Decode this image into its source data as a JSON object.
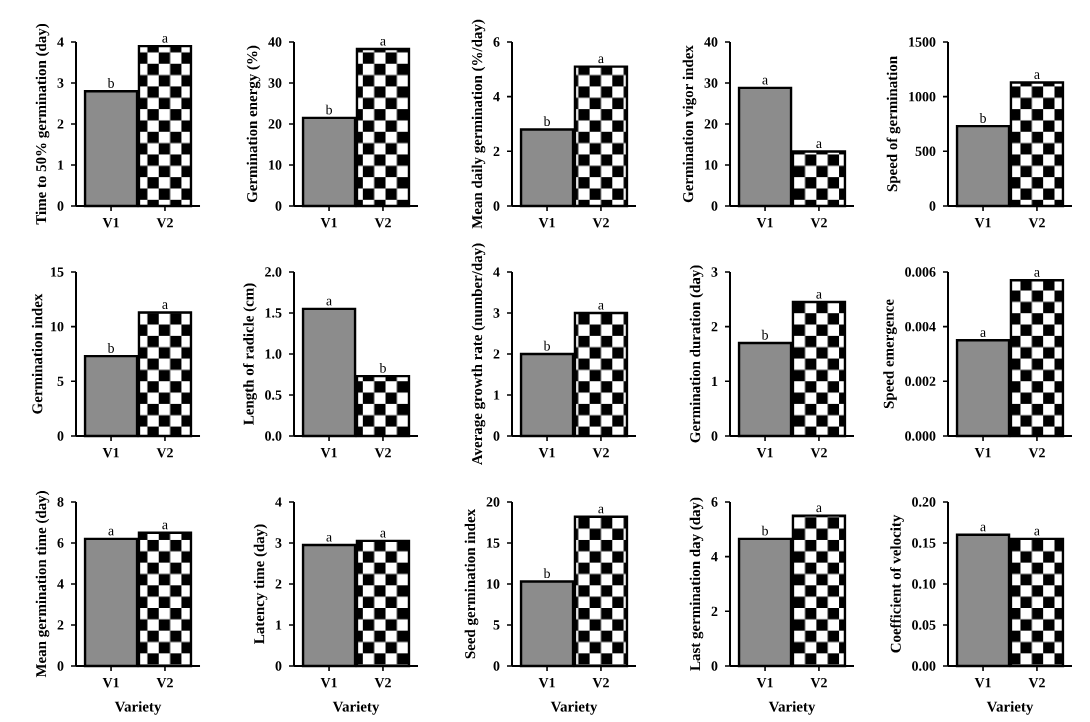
{
  "chart_data": [
    {
      "type": "bar",
      "categories": [
        "V1",
        "V2"
      ],
      "values": [
        2.8,
        3.9
      ],
      "value_labels": [
        "b",
        "a"
      ],
      "colors": [
        "#8c8c8c",
        "#000000"
      ],
      "ylabel": "Time to 50% germination (day)",
      "ylim": [
        0,
        4
      ],
      "yticks": [
        0,
        1,
        2,
        3,
        4
      ]
    },
    {
      "type": "bar",
      "categories": [
        "V1",
        "V2"
      ],
      "values": [
        21.5,
        38.3
      ],
      "value_labels": [
        "b",
        "a"
      ],
      "colors": [
        "#8c8c8c",
        "#000000"
      ],
      "ylabel": "Germination energy (%)",
      "ylim": [
        0,
        40
      ],
      "yticks": [
        0,
        10,
        20,
        30,
        40
      ]
    },
    {
      "type": "bar",
      "categories": [
        "V1",
        "V2"
      ],
      "values": [
        2.8,
        5.1
      ],
      "value_labels": [
        "b",
        "a"
      ],
      "colors": [
        "#8c8c8c",
        "#000000"
      ],
      "ylabel": "Mean daily germination (%/day)",
      "ylim": [
        0,
        6
      ],
      "yticks": [
        0,
        2,
        4,
        6
      ]
    },
    {
      "type": "bar",
      "categories": [
        "V1",
        "V2"
      ],
      "values": [
        28.8,
        13.3
      ],
      "value_labels": [
        "a",
        "a"
      ],
      "colors": [
        "#8c8c8c",
        "#000000"
      ],
      "ylabel": "Germination vigor index",
      "ylim": [
        0,
        40
      ],
      "yticks": [
        0,
        10,
        20,
        30,
        40
      ]
    },
    {
      "type": "bar",
      "categories": [
        "V1",
        "V2"
      ],
      "values": [
        730,
        1130
      ],
      "value_labels": [
        "b",
        "a"
      ],
      "colors": [
        "#8c8c8c",
        "#000000"
      ],
      "ylabel": "Speed of germination",
      "ylim": [
        0,
        1500
      ],
      "yticks": [
        0,
        500,
        1000,
        1500
      ]
    },
    {
      "type": "bar",
      "categories": [
        "V1",
        "V2"
      ],
      "values": [
        7.3,
        11.3
      ],
      "value_labels": [
        "b",
        "a"
      ],
      "colors": [
        "#8c8c8c",
        "#000000"
      ],
      "ylabel": "Germination index",
      "ylim": [
        0,
        15
      ],
      "yticks": [
        0,
        5,
        10,
        15
      ]
    },
    {
      "type": "bar",
      "categories": [
        "V1",
        "V2"
      ],
      "values": [
        1.55,
        0.73
      ],
      "value_labels": [
        "a",
        "b"
      ],
      "colors": [
        "#8c8c8c",
        "#000000"
      ],
      "ylabel": "Length of radicle (cm)",
      "ylim": [
        0,
        2
      ],
      "yticks": [
        {
          "value": 0,
          "label": "0.0"
        },
        0.5,
        {
          "value": 1,
          "label": "1.0"
        },
        1.5,
        {
          "value": 2,
          "label": "2.0"
        }
      ]
    },
    {
      "type": "bar",
      "categories": [
        "V1",
        "V2"
      ],
      "values": [
        2.0,
        3.0
      ],
      "value_labels": [
        "b",
        "a"
      ],
      "colors": [
        "#8c8c8c",
        "#000000"
      ],
      "ylabel": "Average growth rate (number/day)",
      "ylim": [
        0,
        4
      ],
      "yticks": [
        0,
        1,
        2,
        3,
        4
      ]
    },
    {
      "type": "bar",
      "categories": [
        "V1",
        "V2"
      ],
      "values": [
        1.7,
        2.45
      ],
      "value_labels": [
        "b",
        "a"
      ],
      "colors": [
        "#8c8c8c",
        "#000000"
      ],
      "ylabel": "Germination duration (day)",
      "ylim": [
        0,
        3
      ],
      "yticks": [
        0,
        1,
        2,
        3
      ]
    },
    {
      "type": "bar",
      "categories": [
        "V1",
        "V2"
      ],
      "values": [
        0.0035,
        0.0057
      ],
      "value_labels": [
        "a",
        "a"
      ],
      "colors": [
        "#8c8c8c",
        "#000000"
      ],
      "ylabel": "Speed emergence",
      "ylim": [
        0,
        0.006
      ],
      "yticks": [
        {
          "value": 0,
          "label": "0.000"
        },
        0.002,
        0.004,
        0.006
      ]
    },
    {
      "type": "bar",
      "categories": [
        "V1",
        "V2"
      ],
      "values": [
        6.2,
        6.5
      ],
      "value_labels": [
        "a",
        "a"
      ],
      "colors": [
        "#8c8c8c",
        "#000000"
      ],
      "xlabel": "Variety",
      "ylabel": "Mean germination time (day)",
      "ylim": [
        0,
        8
      ],
      "yticks": [
        0,
        2,
        4,
        6,
        8
      ]
    },
    {
      "type": "bar",
      "categories": [
        "V1",
        "V2"
      ],
      "values": [
        2.95,
        3.05
      ],
      "value_labels": [
        "a",
        "a"
      ],
      "colors": [
        "#8c8c8c",
        "#000000"
      ],
      "xlabel": "Variety",
      "ylabel": "Latency time (day)",
      "ylim": [
        0,
        4
      ],
      "yticks": [
        0,
        1,
        2,
        3,
        4
      ]
    },
    {
      "type": "bar",
      "categories": [
        "V1",
        "V2"
      ],
      "values": [
        10.3,
        18.2
      ],
      "value_labels": [
        "b",
        "a"
      ],
      "colors": [
        "#8c8c8c",
        "#000000"
      ],
      "xlabel": "Variety",
      "ylabel": "Seed germination index",
      "ylim": [
        0,
        20
      ],
      "yticks": [
        0,
        5,
        10,
        15,
        20
      ]
    },
    {
      "type": "bar",
      "categories": [
        "V1",
        "V2"
      ],
      "values": [
        4.65,
        5.5
      ],
      "value_labels": [
        "b",
        "a"
      ],
      "colors": [
        "#8c8c8c",
        "#000000"
      ],
      "xlabel": "Variety",
      "ylabel": "Last germination day (day)",
      "ylim": [
        0,
        6
      ],
      "yticks": [
        0,
        2,
        4,
        6
      ]
    },
    {
      "type": "bar",
      "categories": [
        "V1",
        "V2"
      ],
      "values": [
        0.16,
        0.155
      ],
      "value_labels": [
        "a",
        "a"
      ],
      "colors": [
        "#8c8c8c",
        "#000000"
      ],
      "xlabel": "Variety",
      "ylabel": "Coefficient of velocity",
      "ylim": [
        0,
        0.2
      ],
      "yticks": [
        {
          "value": 0,
          "label": "0.00"
        },
        0.05,
        {
          "value": 0.1,
          "label": "0.10"
        },
        0.15,
        {
          "value": 0.2,
          "label": "0.20"
        }
      ]
    }
  ]
}
